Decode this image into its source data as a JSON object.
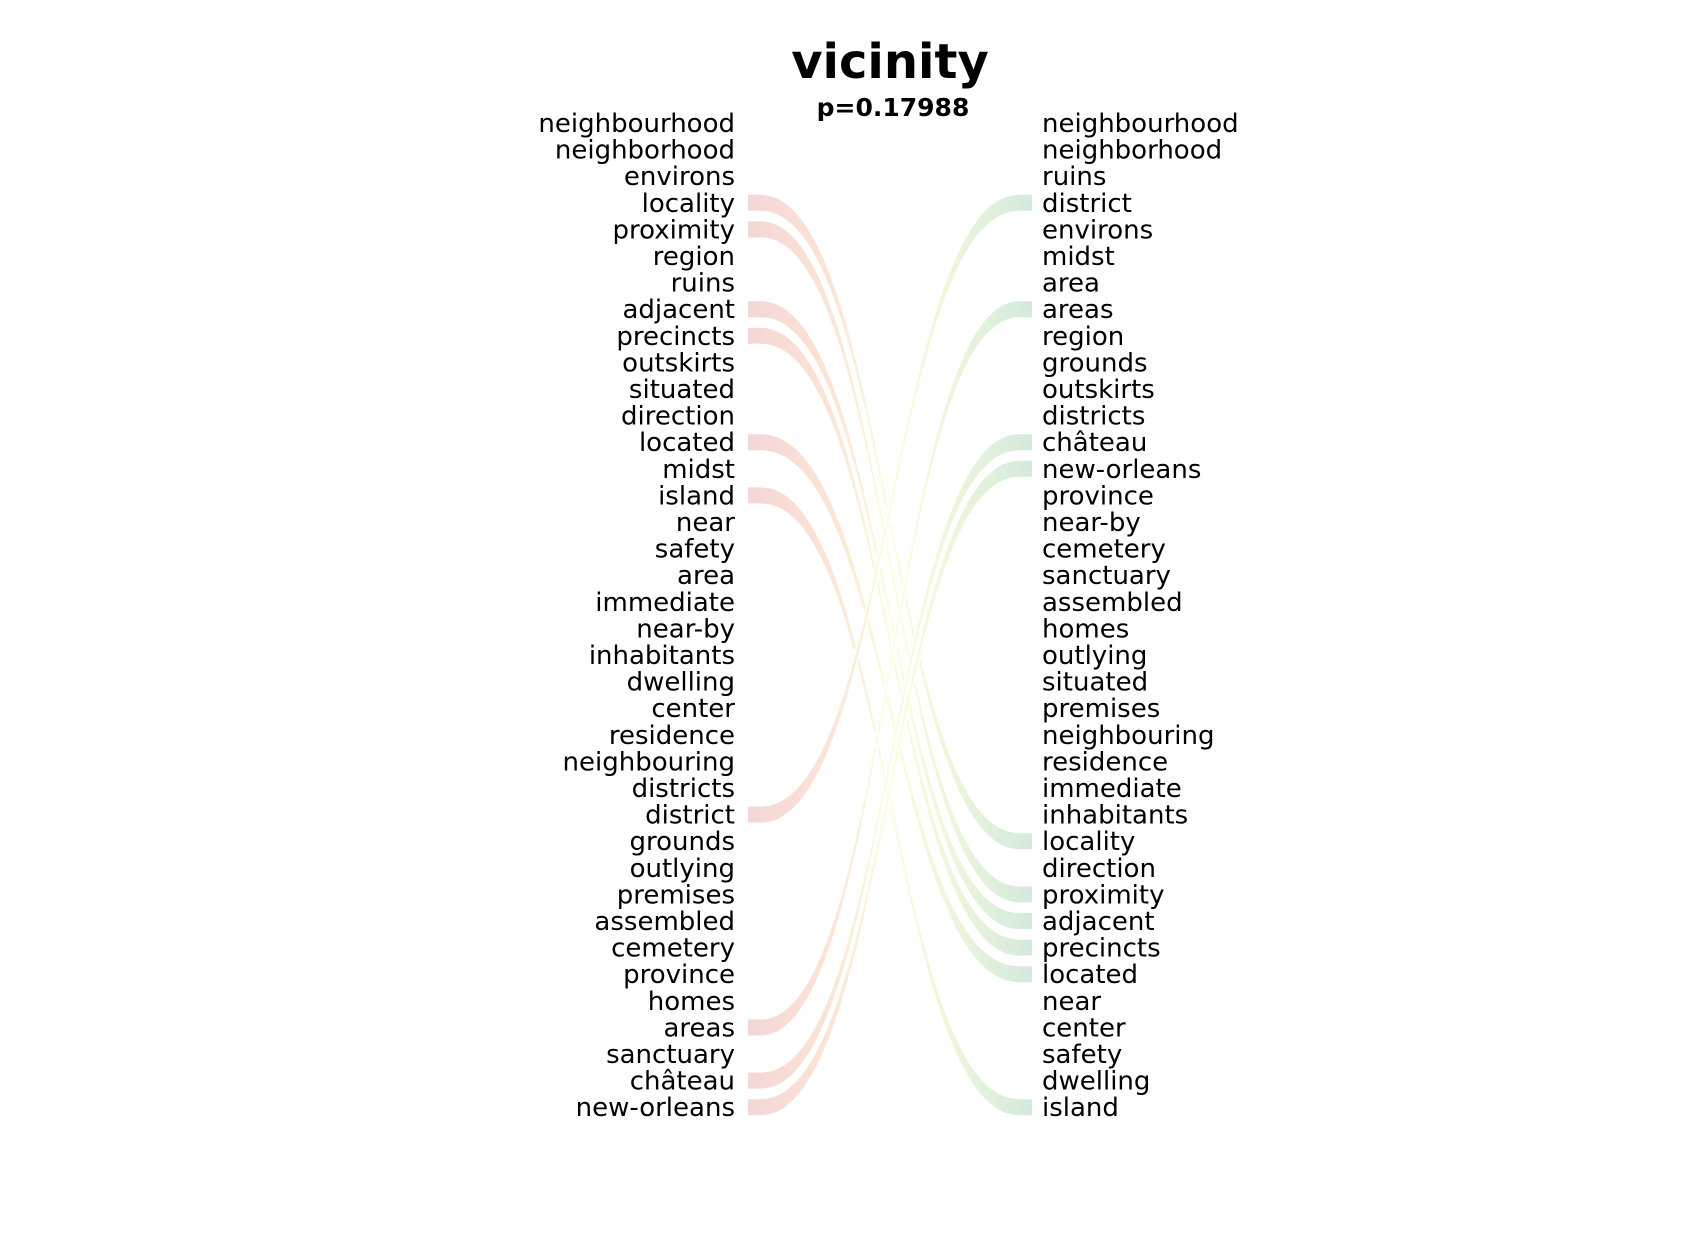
{
  "title": "vicinity",
  "subtitle": "p=0.17988",
  "colors": {
    "left_band": "#f4d6d6",
    "right_band": "#d4e9dd",
    "mid_band": "#fdfbd8",
    "left_mid_band": "#fce5d6",
    "right_mid_band": "#eef7dc"
  },
  "chart_data": {
    "type": "slopegraph",
    "title": "vicinity",
    "subtitle": "p=0.17988",
    "left_ranking": [
      "neighbourhood",
      "neighborhood",
      "environs",
      "locality",
      "proximity",
      "region",
      "ruins",
      "adjacent",
      "precincts",
      "outskirts",
      "situated",
      "direction",
      "located",
      "midst",
      "island",
      "near",
      "safety",
      "area",
      "immediate",
      "near-by",
      "inhabitants",
      "dwelling",
      "center",
      "residence",
      "neighbouring",
      "districts",
      "district",
      "grounds",
      "outlying",
      "premises",
      "assembled",
      "cemetery",
      "province",
      "homes",
      "areas",
      "sanctuary",
      "château",
      "new-orleans"
    ],
    "right_ranking": [
      "neighbourhood",
      "neighborhood",
      "ruins",
      "district",
      "environs",
      "midst",
      "area",
      "areas",
      "region",
      "grounds",
      "outskirts",
      "districts",
      "château",
      "new-orleans",
      "province",
      "near-by",
      "cemetery",
      "sanctuary",
      "assembled",
      "homes",
      "outlying",
      "situated",
      "premises",
      "neighbouring",
      "residence",
      "immediate",
      "inhabitants",
      "locality",
      "direction",
      "proximity",
      "adjacent",
      "precincts",
      "located",
      "near",
      "center",
      "safety",
      "dwelling",
      "island"
    ],
    "highlighted_links": [
      "locality",
      "proximity",
      "adjacent",
      "precincts",
      "located",
      "island",
      "district",
      "areas",
      "château",
      "new-orleans"
    ]
  }
}
